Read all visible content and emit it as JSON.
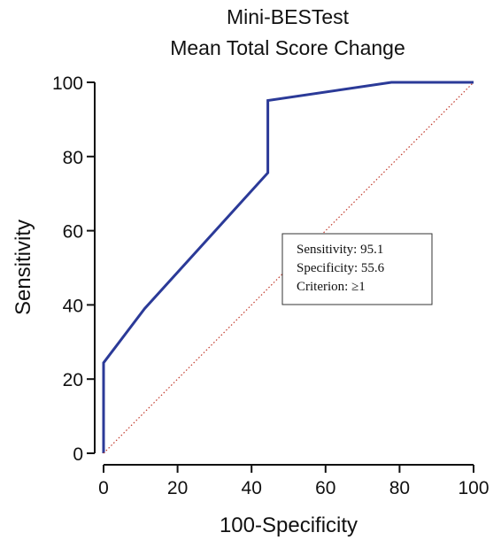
{
  "chart_data": {
    "type": "line",
    "title": [
      "Mini-BESTest",
      "Mean Total Score Change"
    ],
    "xlabel": "100-Specificity",
    "ylabel": "Sensitivity",
    "xlim": [
      0,
      100
    ],
    "ylim": [
      0,
      100
    ],
    "xticks": [
      0,
      20,
      40,
      60,
      80,
      100
    ],
    "yticks": [
      0,
      20,
      40,
      60,
      80,
      100
    ],
    "grid": false,
    "series": [
      {
        "color": "#2b3a98",
        "style": "solid",
        "x": [
          0,
          0,
          11.1,
          44.4,
          44.4,
          77.8,
          100
        ],
        "y": [
          0,
          24.4,
          39.0,
          75.6,
          95.1,
          100,
          100
        ]
      },
      {
        "color": "#c0392b",
        "style": "dotted",
        "x": [
          0,
          100
        ],
        "y": [
          0,
          100
        ]
      }
    ],
    "annotation": {
      "lines": [
        "Sensitivity: 95.1",
        "Specificity: 55.6",
        "Criterion: ≥1"
      ]
    }
  }
}
